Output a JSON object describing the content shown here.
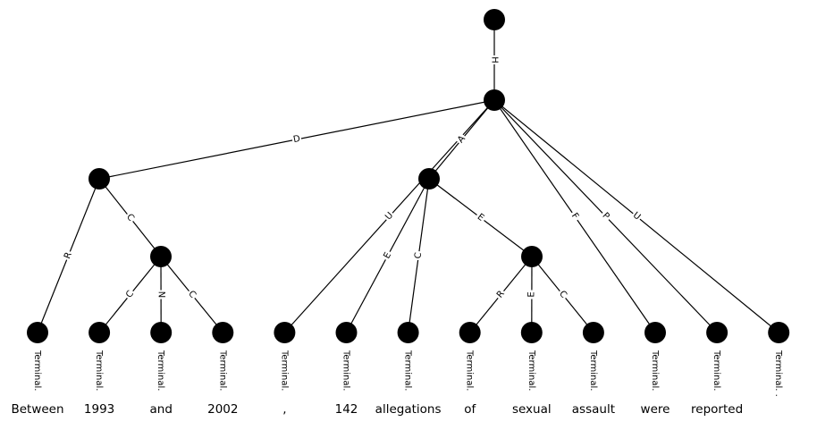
{
  "nodes": [
    {
      "id": "root",
      "terminal": false
    },
    {
      "id": "h",
      "terminal": false
    },
    {
      "id": "d",
      "terminal": false
    },
    {
      "id": "a",
      "terminal": false
    },
    {
      "id": "dc",
      "terminal": false
    },
    {
      "id": "ae",
      "terminal": false
    },
    {
      "id": "t0",
      "terminal": true,
      "label": "Terminal.",
      "word": "Between"
    },
    {
      "id": "t1",
      "terminal": true,
      "label": "Terminal.",
      "word": "1993"
    },
    {
      "id": "t2",
      "terminal": true,
      "label": "Terminal.",
      "word": "and"
    },
    {
      "id": "t3",
      "terminal": true,
      "label": "Terminal.",
      "word": "2002"
    },
    {
      "id": "t4",
      "terminal": true,
      "label": "Terminal.",
      "word": ","
    },
    {
      "id": "t5",
      "terminal": true,
      "label": "Terminal.",
      "word": "142"
    },
    {
      "id": "t6",
      "terminal": true,
      "label": "Terminal.",
      "word": "allegations"
    },
    {
      "id": "t7",
      "terminal": true,
      "label": "Terminal.",
      "word": "of"
    },
    {
      "id": "t8",
      "terminal": true,
      "label": "Terminal.",
      "word": "sexual"
    },
    {
      "id": "t9",
      "terminal": true,
      "label": "Terminal.",
      "word": "assault"
    },
    {
      "id": "t10",
      "terminal": true,
      "label": "Terminal.",
      "word": "were"
    },
    {
      "id": "t11",
      "terminal": true,
      "label": "Terminal.",
      "word": "reported"
    },
    {
      "id": "t12",
      "terminal": true,
      "label": "Terminal. .",
      "word": ""
    }
  ],
  "edges": [
    {
      "from": "root",
      "to": "h",
      "label": "H"
    },
    {
      "from": "h",
      "to": "d",
      "label": "D"
    },
    {
      "from": "h",
      "to": "a",
      "label": "A"
    },
    {
      "from": "h",
      "to": "t4",
      "label": "U"
    },
    {
      "from": "h",
      "to": "t10",
      "label": "F"
    },
    {
      "from": "h",
      "to": "t11",
      "label": "P"
    },
    {
      "from": "h",
      "to": "t12",
      "label": "U"
    },
    {
      "from": "d",
      "to": "t0",
      "label": "R"
    },
    {
      "from": "d",
      "to": "dc",
      "label": "C"
    },
    {
      "from": "dc",
      "to": "t1",
      "label": "C"
    },
    {
      "from": "dc",
      "to": "t2",
      "label": "N"
    },
    {
      "from": "dc",
      "to": "t3",
      "label": "C"
    },
    {
      "from": "a",
      "to": "t5",
      "label": "E"
    },
    {
      "from": "a",
      "to": "t6",
      "label": "C"
    },
    {
      "from": "a",
      "to": "ae",
      "label": "E"
    },
    {
      "from": "ae",
      "to": "t7",
      "label": "R"
    },
    {
      "from": "ae",
      "to": "t8",
      "label": "E"
    },
    {
      "from": "ae",
      "to": "t9",
      "label": "C"
    }
  ]
}
